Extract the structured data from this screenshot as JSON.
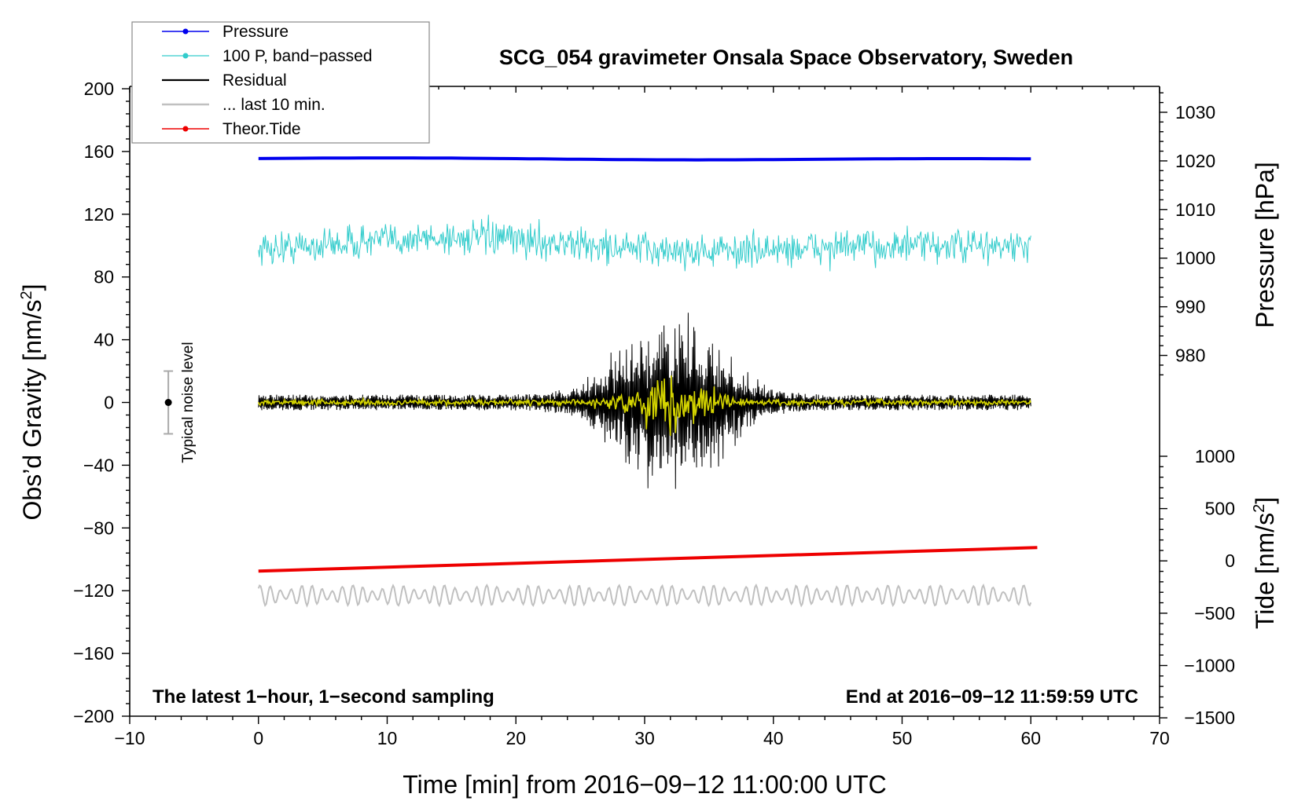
{
  "chart_data": {
    "type": "line",
    "title": "SCG_054 gravimeter Onsala Space Observatory, Sweden",
    "xlabel": "Time [min] from 2016−09−12 11:00:00 UTC",
    "ylabel_main": "Obs’d Gravity [nm/s",
    "ylabel_main_sup": "2",
    "ylabel_main_end": "]",
    "ylabel_pressure": "Pressure [hPa]",
    "ylabel_tide": "Tide [nm/s",
    "ylabel_tide_sup": "2",
    "ylabel_tide_end": "]",
    "xlim": [
      -10,
      70
    ],
    "ylim": [
      -200,
      200
    ],
    "xticks": [
      -10,
      0,
      10,
      20,
      30,
      40,
      50,
      60,
      70
    ],
    "xtick_labels": [
      "−10",
      "0",
      "10",
      "20",
      "30",
      "40",
      "50",
      "60",
      "70"
    ],
    "yticks": [
      200,
      160,
      120,
      80,
      40,
      0,
      -40,
      -80,
      -120,
      -160,
      -200
    ],
    "ytick_labels": [
      "200",
      "160",
      "120",
      "80",
      "40",
      "0",
      "−40",
      "−80",
      "−120",
      "−160",
      "−200"
    ],
    "pressure_ticks": [
      1030,
      1020,
      1010,
      1000,
      990,
      980
    ],
    "pressure_tick_labels": [
      "1030",
      "1020",
      "1010",
      "1000",
      "990",
      "980"
    ],
    "pressure_axis_ref": {
      "hPa_at_1020": 1020,
      "gravity_at_1020": 154,
      "gravity_per_hPa": 3.1
    },
    "tide_ticks": [
      1000,
      500,
      0,
      -500,
      -1000,
      -1500
    ],
    "tide_tick_labels": [
      "1000",
      "500",
      "0",
      "−500",
      "−1000",
      "−1500"
    ],
    "tide_axis_ref": {
      "tide_at_zero": 0,
      "gravity_at_zero": -101,
      "gravity_per_unit": 0.0667
    },
    "annotation_left": "The latest 1−hour, 1−second sampling",
    "annotation_right": "End at 2016−09−12 11:59:59 UTC",
    "noise_label": "Typical noise level",
    "noise_bar": {
      "x": -7,
      "center": 0,
      "low": -20,
      "high": 20
    },
    "series": [
      {
        "name": "Pressure",
        "color": "#0000ee",
        "style": "thick",
        "x_range": [
          0,
          60
        ],
        "level": 155.5,
        "note": "nearly constant ~1020 hPa"
      },
      {
        "name": "100 P, band−passed",
        "color": "#33cccc",
        "style": "thin-noise",
        "x_range": [
          0,
          60
        ],
        "level": 100,
        "amplitude": 6
      },
      {
        "name": "Residual",
        "color": "#000000",
        "style": "noise",
        "x_range": [
          0,
          60
        ],
        "level": 0,
        "amplitude": 5,
        "burst": {
          "center": 32,
          "width": 5,
          "peak": 65
        }
      },
      {
        "name": "... last 10 min.",
        "color": "#c0c0c0",
        "style": "wave",
        "x_range": [
          0,
          60
        ],
        "level": -123,
        "amplitude": 5
      },
      {
        "name": "Theor.Tide",
        "color": "#ee0000",
        "style": "thick",
        "x_range": [
          0,
          60.5
        ],
        "start": -107.5,
        "end": -92.5
      }
    ],
    "overlay_series": {
      "color": "#d4d400",
      "level": 0,
      "amplitude": 1.5,
      "burst_peak": 12
    },
    "legend": {
      "placement": "top-left",
      "entries": [
        "Pressure",
        "100 P, band−passed",
        "Residual",
        "... last 10 min.",
        "Theor.Tide"
      ]
    },
    "grid": false
  }
}
